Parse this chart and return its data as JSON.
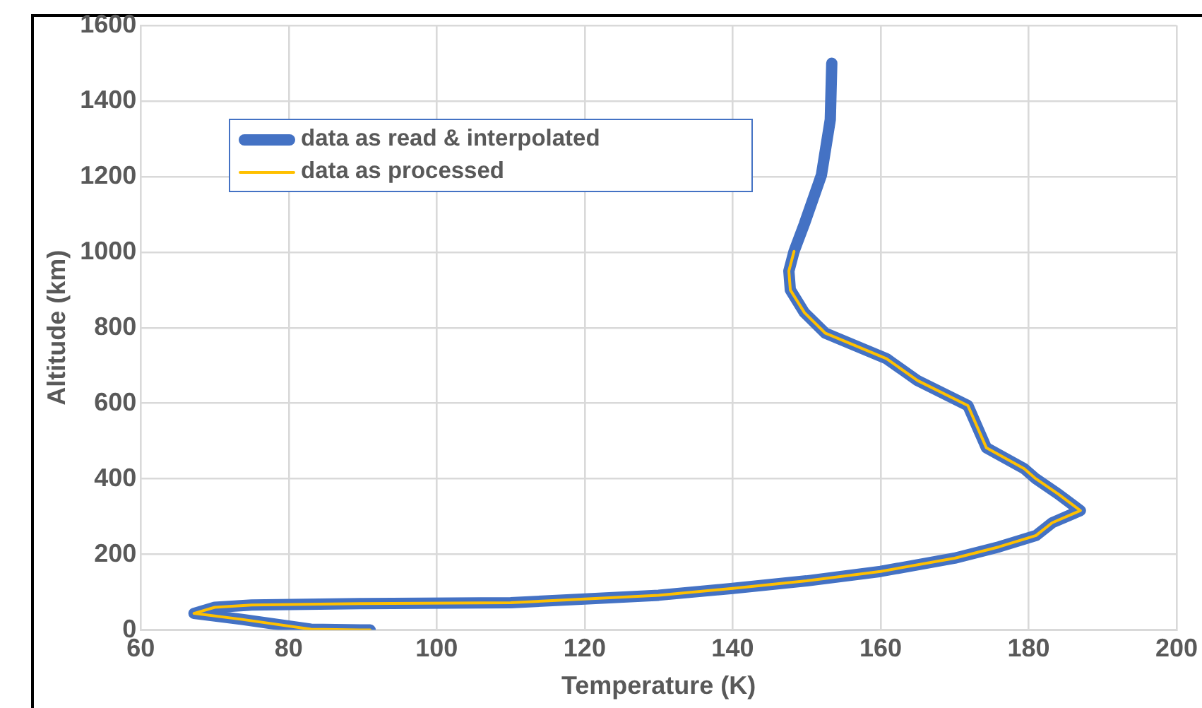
{
  "chart_data": {
    "type": "line",
    "xlabel": "Temperature (K)",
    "ylabel": "Altitude (km)",
    "xlim": [
      60,
      200
    ],
    "xticks": [
      60,
      80,
      100,
      120,
      140,
      160,
      180,
      200
    ],
    "ylim": [
      0,
      1600
    ],
    "yticks": [
      0,
      200,
      400,
      600,
      800,
      1000,
      1200,
      1400,
      1600
    ],
    "grid": true,
    "legend": "top left",
    "marker": "none",
    "line_style": "solid",
    "series": [
      {
        "name": "data as read & interpolated",
        "color": "#4472c4",
        "x": [
          91,
          83,
          73.7,
          67.2,
          70,
          75,
          90,
          110,
          120,
          130,
          140,
          150,
          160,
          170,
          176,
          181,
          183.2,
          187,
          184,
          181,
          179.4,
          174.3,
          171.8,
          165,
          160.8,
          152.5,
          149.7,
          147.8,
          147.6,
          148.3,
          149.7,
          152,
          153.2,
          153.4
        ],
        "values": [
          0,
          2,
          28,
          44,
          60,
          66,
          70,
          72,
          82,
          92,
          110,
          130,
          155,
          190,
          220,
          250,
          284,
          316,
          360,
          400,
          427,
          482,
          594,
          660,
          718,
          786,
          840,
          900,
          950,
          1002,
          1075,
          1204,
          1351,
          1500
        ]
      },
      {
        "name": "data as processed",
        "color": "#ffc000",
        "x": [
          91,
          83,
          73.7,
          67.2,
          70,
          75,
          90,
          110,
          120,
          130,
          140,
          150,
          160,
          170,
          176,
          181,
          183.2,
          187,
          184,
          181,
          179.4,
          174.3,
          171.8,
          165,
          160.8,
          152.5,
          149.7,
          147.8,
          147.6,
          148.3
        ],
        "values": [
          0,
          2,
          28,
          44,
          60,
          66,
          70,
          72,
          82,
          92,
          110,
          130,
          155,
          190,
          220,
          250,
          284,
          316,
          360,
          400,
          427,
          482,
          594,
          660,
          718,
          786,
          840,
          900,
          950,
          1002
        ]
      }
    ]
  }
}
